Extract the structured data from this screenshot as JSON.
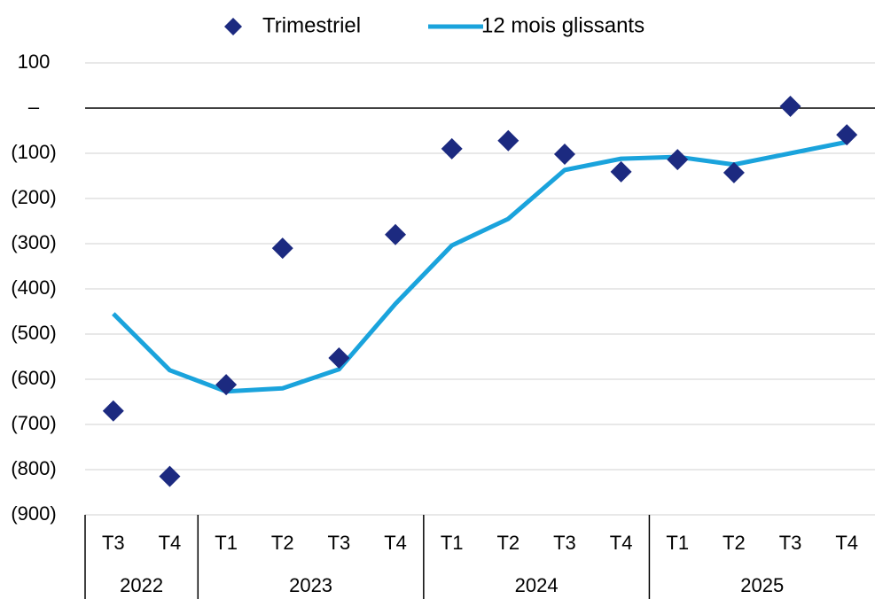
{
  "chart_data": {
    "type": "line",
    "categories": [
      "T3",
      "T4",
      "T1",
      "T2",
      "T3",
      "T4",
      "T1",
      "T2",
      "T3",
      "T4",
      "T1",
      "T2",
      "T3",
      "T4"
    ],
    "year_groups": [
      {
        "label": "2022",
        "count": 2
      },
      {
        "label": "2023",
        "count": 4
      },
      {
        "label": "2024",
        "count": 4
      },
      {
        "label": "2025",
        "count": 4
      }
    ],
    "series": [
      {
        "name": "Trimestriel",
        "color": "#1c2a80",
        "marker": "diamond",
        "values": [
          -670,
          -815,
          -612,
          -310,
          -553,
          -280,
          -90,
          -72,
          -102,
          -141,
          -114,
          -143,
          4,
          -59
        ]
      },
      {
        "name": "12 mois glissants",
        "color": "#1aa3dc",
        "marker": "line",
        "values": [
          -455,
          -580,
          -627,
          -620,
          -578,
          -433,
          -304,
          -245,
          -137,
          -112,
          -108,
          -125,
          -100,
          -75
        ]
      }
    ],
    "ylim": [
      -900,
      100
    ],
    "yticks": [
      {
        "value": -900,
        "label": "(900)"
      },
      {
        "value": -800,
        "label": "(800)"
      },
      {
        "value": -700,
        "label": "(700)"
      },
      {
        "value": -600,
        "label": "(600)"
      },
      {
        "value": -500,
        "label": "(500)"
      },
      {
        "value": -400,
        "label": "(400)"
      },
      {
        "value": -300,
        "label": "(300)"
      },
      {
        "value": -200,
        "label": "(200)"
      },
      {
        "value": -100,
        "label": "(100)"
      },
      {
        "value": 0,
        "label": "–"
      },
      100
    ],
    "grid": true,
    "legend": "top"
  }
}
